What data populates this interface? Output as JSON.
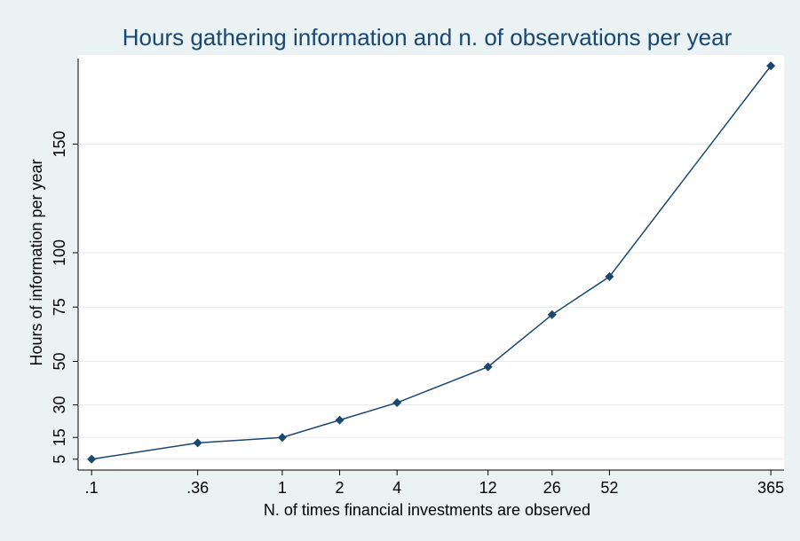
{
  "chart_data": {
    "type": "line",
    "title": "Hours gathering information and n. of observations per year",
    "xlabel": "N. of times financial investments are observed",
    "ylabel": "Hours of information per year",
    "x": [
      0.1,
      0.36,
      1,
      2,
      4,
      12,
      26,
      52,
      365
    ],
    "series": [
      {
        "color": "#1a476f",
        "values": [
          5,
          12.5,
          15,
          23,
          31,
          47.5,
          71.5,
          89,
          186
        ]
      }
    ],
    "xscale": "log",
    "xlim": [
      0.085,
      428
    ],
    "xticks": [
      {
        "value": 0.1,
        "label": ".1"
      },
      {
        "value": 0.36,
        "label": ".36"
      },
      1,
      2,
      4,
      12,
      26,
      52,
      365
    ],
    "ylim": [
      0,
      191
    ],
    "yticks": [
      5,
      15,
      30,
      50,
      75,
      100,
      150
    ],
    "grid": true
  }
}
